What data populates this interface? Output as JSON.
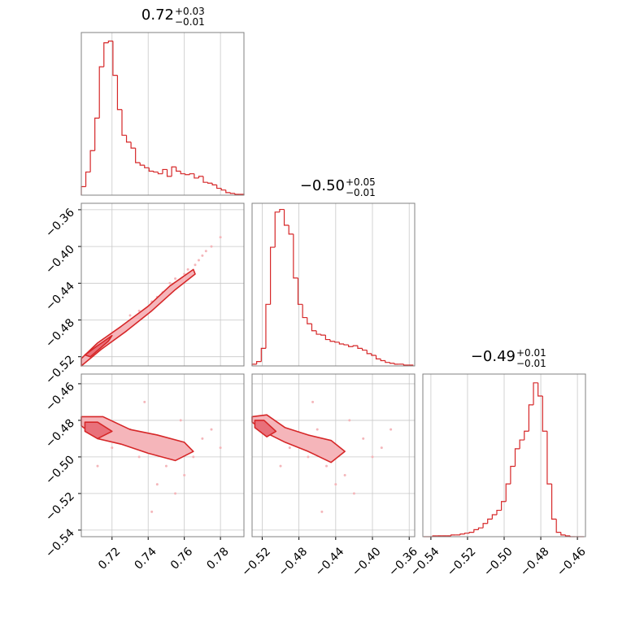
{
  "chart_data": [
    {
      "type": "histogram",
      "title": "0.72",
      "title_upper": "+0.03",
      "title_lower": "−0.01",
      "color": "#d62728",
      "bins": [
        0.703,
        0.7055,
        0.708,
        0.7105,
        0.713,
        0.7155,
        0.718,
        0.7205,
        0.723,
        0.7255,
        0.728,
        0.7305,
        0.733,
        0.7355,
        0.738,
        0.7405,
        0.743,
        0.7455,
        0.748,
        0.7505,
        0.753,
        0.7555,
        0.758,
        0.7605,
        0.763,
        0.7655,
        0.768,
        0.7705,
        0.773,
        0.7755,
        0.778,
        0.7805,
        0.783,
        0.7855,
        0.788,
        0.7905,
        0.793
      ],
      "values": [
        10,
        27,
        52,
        90,
        150,
        178,
        180,
        140,
        100,
        70,
        62,
        55,
        38,
        35,
        32,
        28,
        27,
        25,
        30,
        22,
        33,
        28,
        25,
        24,
        25,
        20,
        22,
        15,
        14,
        12,
        8,
        6,
        3,
        2,
        1,
        1
      ],
      "xlim": [
        0.703,
        0.793
      ],
      "ylim": [
        0,
        190
      ],
      "xticks": [
        0.72,
        0.74,
        0.76,
        0.78
      ],
      "grid": true
    },
    {
      "type": "scatter",
      "color": "#f4b6ba",
      "x": [
        0.73,
        0.745,
        0.76,
        0.77,
        0.775,
        0.752,
        0.738,
        0.725,
        0.768,
        0.78,
        0.755,
        0.742,
        0.762,
        0.772,
        0.735,
        0.748,
        0.758,
        0.766
      ],
      "y": [
        -0.475,
        -0.455,
        -0.43,
        -0.41,
        -0.4,
        -0.44,
        -0.47,
        -0.49,
        -0.415,
        -0.39,
        -0.435,
        -0.46,
        -0.425,
        -0.405,
        -0.47,
        -0.45,
        -0.44,
        -0.42
      ],
      "contours": [
        {
          "x": [
            0.703,
            0.712,
            0.725,
            0.74,
            0.752,
            0.765,
            0.766,
            0.755,
            0.742,
            0.728,
            0.714,
            0.703
          ],
          "y": [
            -0.522,
            -0.505,
            -0.487,
            -0.465,
            -0.443,
            -0.425,
            -0.43,
            -0.447,
            -0.47,
            -0.492,
            -0.512,
            -0.53
          ],
          "fill": "#f5b5ba"
        },
        {
          "x": [
            0.705,
            0.712,
            0.72,
            0.718,
            0.708
          ],
          "y": [
            -0.518,
            -0.508,
            -0.497,
            -0.503,
            -0.52
          ],
          "fill": "#e9707a"
        }
      ],
      "line_color": "#d62728",
      "xlim": [
        0.703,
        0.793
      ],
      "ylim": [
        -0.53,
        -0.353
      ],
      "xticks": [
        0.72,
        0.74,
        0.76,
        0.78
      ],
      "yticks": [
        {
          "value": -0.36,
          "label": "−0.36"
        },
        {
          "value": -0.4,
          "label": "−0.40"
        },
        {
          "value": -0.44,
          "label": "−0.44"
        },
        {
          "value": -0.48,
          "label": "−0.48"
        },
        {
          "value": -0.52,
          "label": "−0.52"
        }
      ],
      "grid": true
    },
    {
      "type": "histogram",
      "title": "−0.50",
      "title_upper": "+0.05",
      "title_lower": "−0.01",
      "color": "#d62728",
      "bins": [
        -0.531,
        -0.526,
        -0.521,
        -0.516,
        -0.511,
        -0.506,
        -0.501,
        -0.496,
        -0.491,
        -0.486,
        -0.481,
        -0.476,
        -0.471,
        -0.466,
        -0.461,
        -0.456,
        -0.451,
        -0.446,
        -0.441,
        -0.436,
        -0.431,
        -0.426,
        -0.421,
        -0.416,
        -0.411,
        -0.406,
        -0.401,
        -0.396,
        -0.391,
        -0.386,
        -0.381,
        -0.376,
        -0.371,
        -0.366,
        -0.361,
        -0.356
      ],
      "values": [
        2,
        5,
        20,
        70,
        135,
        175,
        178,
        160,
        150,
        100,
        70,
        55,
        48,
        40,
        36,
        35,
        30,
        28,
        27,
        25,
        24,
        22,
        23,
        20,
        18,
        14,
        12,
        8,
        6,
        4,
        3,
        2,
        2,
        1,
        1
      ],
      "xlim": [
        -0.531,
        -0.354
      ],
      "ylim": [
        0,
        185
      ],
      "xticks": [
        -0.52,
        -0.48,
        -0.44,
        -0.4,
        -0.36
      ],
      "grid": true
    },
    {
      "type": "scatter",
      "color": "#f4b6ba",
      "x": [
        0.72,
        0.735,
        0.75,
        0.76,
        0.77,
        0.745,
        0.73,
        0.755,
        0.765,
        0.775,
        0.742,
        0.738,
        0.712,
        0.78,
        0.758
      ],
      "y": [
        -0.495,
        -0.5,
        -0.505,
        -0.51,
        -0.49,
        -0.515,
        -0.485,
        -0.52,
        -0.5,
        -0.485,
        -0.53,
        -0.47,
        -0.505,
        -0.495,
        -0.48
      ],
      "contours": [
        {
          "x": [
            0.703,
            0.715,
            0.73,
            0.745,
            0.76,
            0.765,
            0.755,
            0.74,
            0.725,
            0.712,
            0.703
          ],
          "y": [
            -0.478,
            -0.478,
            -0.485,
            -0.488,
            -0.492,
            -0.497,
            -0.502,
            -0.498,
            -0.493,
            -0.49,
            -0.483
          ],
          "fill": "#f5b5ba"
        },
        {
          "x": [
            0.705,
            0.712,
            0.72,
            0.712,
            0.705
          ],
          "y": [
            -0.481,
            -0.481,
            -0.486,
            -0.49,
            -0.486
          ],
          "fill": "#e9707a"
        }
      ],
      "line_color": "#d62728",
      "xlim": [
        0.703,
        0.793
      ],
      "ylim": [
        -0.5436,
        -0.4547
      ],
      "xticks": [
        {
          "value": 0.72,
          "label": "0.72"
        },
        {
          "value": 0.74,
          "label": "0.74"
        },
        {
          "value": 0.76,
          "label": "0.76"
        },
        {
          "value": 0.78,
          "label": "0.78"
        }
      ],
      "yticks": [
        {
          "value": -0.46,
          "label": "−0.46"
        },
        {
          "value": -0.48,
          "label": "−0.48"
        },
        {
          "value": -0.5,
          "label": "−0.50"
        },
        {
          "value": -0.52,
          "label": "−0.52"
        },
        {
          "value": -0.54,
          "label": "−0.54"
        }
      ],
      "grid": true
    },
    {
      "type": "scatter",
      "color": "#f4b6ba",
      "x": [
        -0.49,
        -0.47,
        -0.45,
        -0.43,
        -0.41,
        -0.44,
        -0.46,
        -0.42,
        -0.4,
        -0.38,
        -0.455,
        -0.465,
        -0.5,
        -0.39,
        -0.425
      ],
      "y": [
        -0.495,
        -0.5,
        -0.505,
        -0.51,
        -0.49,
        -0.515,
        -0.485,
        -0.52,
        -0.5,
        -0.485,
        -0.53,
        -0.47,
        -0.505,
        -0.495,
        -0.48
      ],
      "contours": [
        {
          "x": [
            -0.531,
            -0.515,
            -0.495,
            -0.47,
            -0.445,
            -0.43,
            -0.445,
            -0.47,
            -0.495,
            -0.515,
            -0.531
          ],
          "y": [
            -0.478,
            -0.477,
            -0.484,
            -0.488,
            -0.491,
            -0.497,
            -0.503,
            -0.497,
            -0.492,
            -0.487,
            -0.481
          ],
          "fill": "#f5b5ba"
        },
        {
          "x": [
            -0.528,
            -0.518,
            -0.505,
            -0.515,
            -0.528
          ],
          "y": [
            -0.48,
            -0.48,
            -0.486,
            -0.489,
            -0.484
          ],
          "fill": "#e9707a"
        }
      ],
      "line_color": "#d62728",
      "xlim": [
        -0.531,
        -0.354
      ],
      "ylim": [
        -0.5436,
        -0.4547
      ],
      "xticks": [
        {
          "value": -0.52,
          "label": "−0.52"
        },
        {
          "value": -0.48,
          "label": "−0.48"
        },
        {
          "value": -0.44,
          "label": "−0.44"
        },
        {
          "value": -0.4,
          "label": "−0.40"
        },
        {
          "value": -0.36,
          "label": "−0.36"
        }
      ],
      "yticks": [
        -0.46,
        -0.48,
        -0.5,
        -0.52,
        -0.54
      ],
      "grid": true
    },
    {
      "type": "histogram",
      "title": "−0.49",
      "title_upper": "+0.01",
      "title_lower": "−0.01",
      "color": "#d62728",
      "bins": [
        -0.544,
        -0.5415,
        -0.539,
        -0.5365,
        -0.534,
        -0.5315,
        -0.529,
        -0.5265,
        -0.524,
        -0.5215,
        -0.519,
        -0.5165,
        -0.514,
        -0.5115,
        -0.509,
        -0.5065,
        -0.504,
        -0.5015,
        -0.499,
        -0.4965,
        -0.494,
        -0.4915,
        -0.489,
        -0.4865,
        -0.484,
        -0.4815,
        -0.479,
        -0.4765,
        -0.474,
        -0.4715,
        -0.469,
        -0.4665,
        -0.464,
        -0.4615,
        -0.459,
        -0.4565
      ],
      "values": [
        0,
        0,
        1,
        1,
        1,
        1,
        2,
        2,
        3,
        4,
        5,
        8,
        10,
        15,
        20,
        25,
        30,
        40,
        60,
        80,
        100,
        110,
        120,
        150,
        175,
        160,
        120,
        60,
        20,
        5,
        2,
        1,
        0,
        0,
        0
      ],
      "xlim": [
        -0.5444,
        -0.4556
      ],
      "ylim": [
        0,
        185
      ],
      "xticks": [
        {
          "value": -0.54,
          "label": "−0.54"
        },
        {
          "value": -0.52,
          "label": "−0.52"
        },
        {
          "value": -0.5,
          "label": "−0.50"
        },
        {
          "value": -0.48,
          "label": "−0.48"
        },
        {
          "value": -0.46,
          "label": "−0.46"
        }
      ],
      "grid": true
    }
  ]
}
